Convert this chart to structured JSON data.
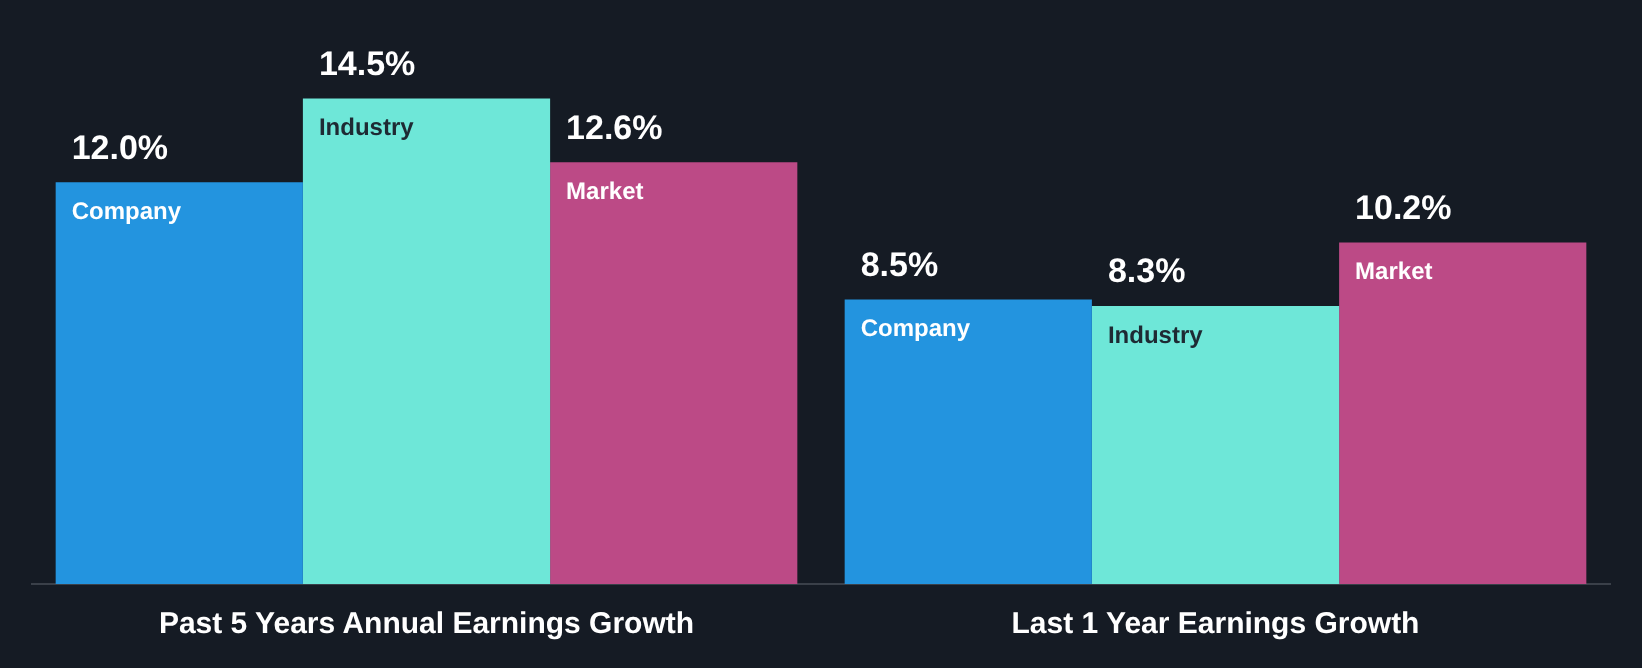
{
  "chart_data": {
    "type": "bar",
    "categories": [
      "Past 5 Years Annual Earnings Growth",
      "Last 1 Year Earnings Growth"
    ],
    "series": [
      {
        "name": "Company",
        "color": "#2394df",
        "values": [
          12.0,
          8.5
        ],
        "value_labels": [
          "12.0%",
          "8.5%"
        ]
      },
      {
        "name": "Industry",
        "color": "#6ee7d8",
        "values": [
          14.5,
          8.3
        ],
        "value_labels": [
          "14.5%",
          "8.3%"
        ]
      },
      {
        "name": "Market",
        "color": "#bc4a86",
        "values": [
          12.6,
          10.2
        ],
        "value_labels": [
          "12.6%",
          "10.2%"
        ]
      }
    ],
    "legend": false,
    "grid": false
  }
}
